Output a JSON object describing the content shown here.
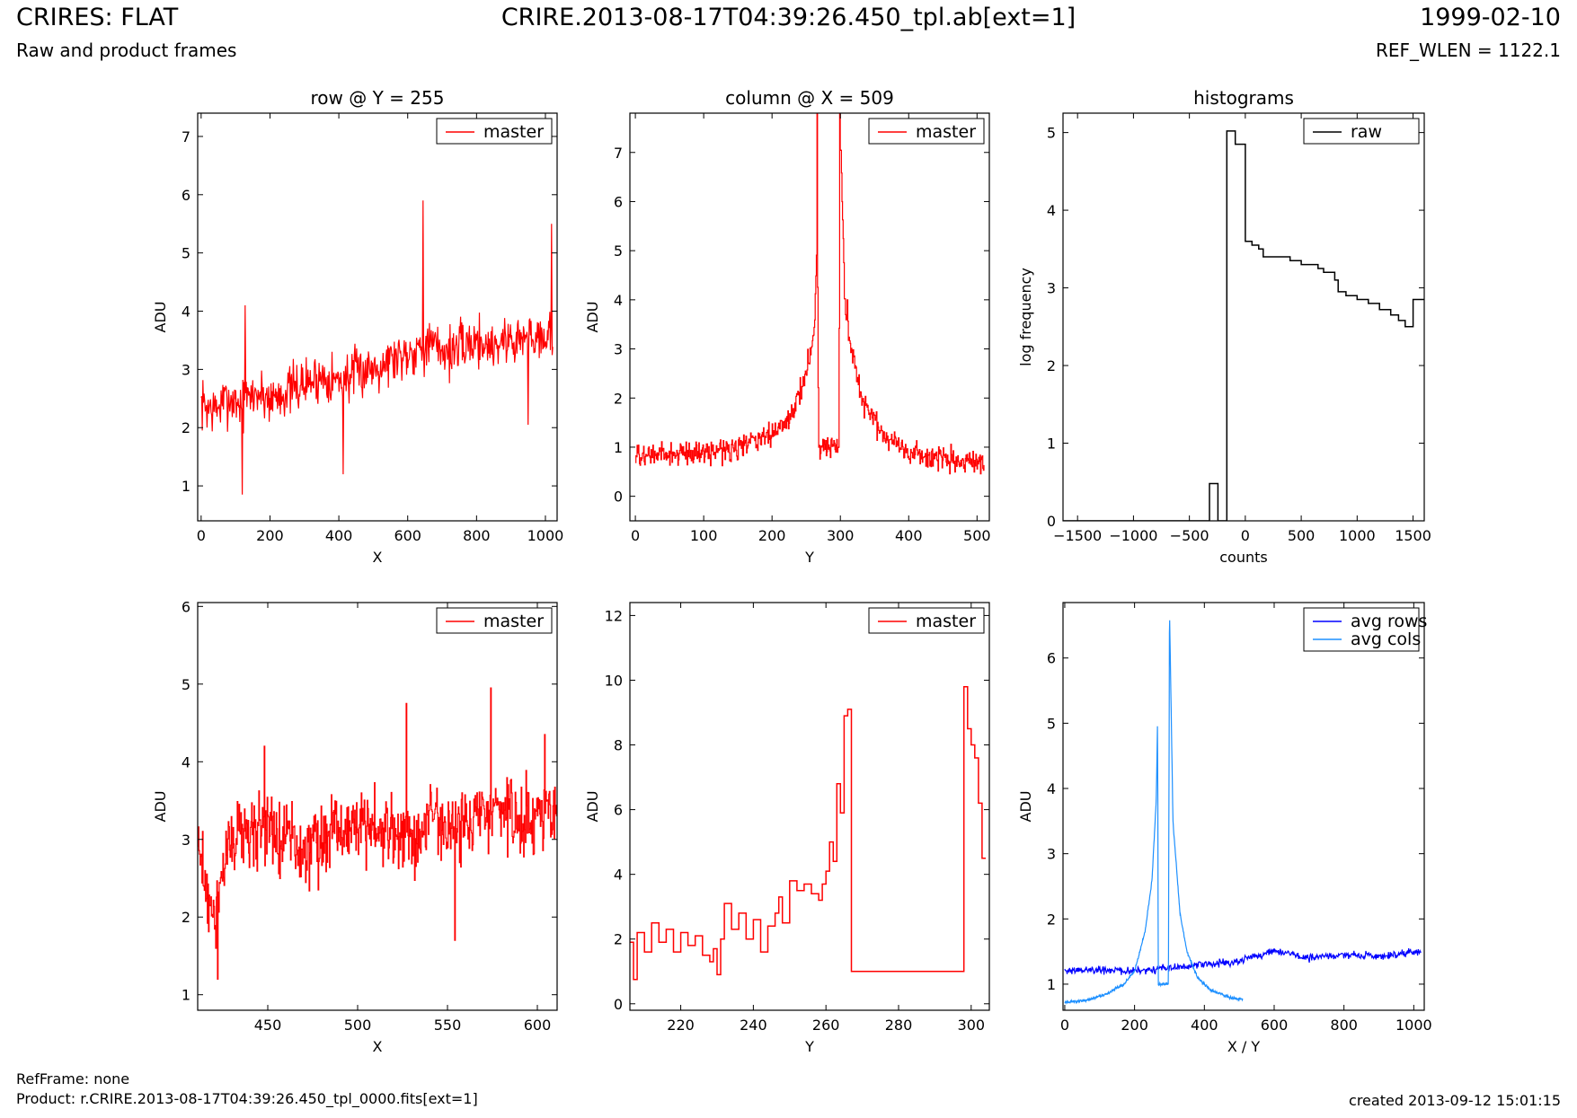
{
  "header": {
    "title": "CRIRES: FLAT",
    "subtitle": "Raw and product frames",
    "filename": "CRIRE.2013-08-17T04:39:26.450_tpl.ab[ext=1]",
    "date": "1999-02-10",
    "ref_wlen": "REF_WLEN = 1122.1"
  },
  "footer": {
    "refframe": "RefFrame: none",
    "product": "Product: r.CRIRE.2013-08-17T04:39:26.450_tpl_0000.fits[ext=1]",
    "created": "created 2013-09-12 15:01:15"
  },
  "colors": {
    "master": "#ff0000",
    "raw": "#000000",
    "avg_rows": "#0000ff",
    "avg_cols": "#1e90ff",
    "frame": "#000000"
  },
  "chart_data": [
    {
      "type": "line",
      "title": "row @ Y = 255",
      "xlabel": "X",
      "ylabel": "ADU",
      "xlim": [
        -10,
        1034
      ],
      "ylim": [
        0.4,
        7.4
      ],
      "xticks": [
        0,
        200,
        400,
        600,
        800,
        1000
      ],
      "yticks": [
        1,
        2,
        3,
        4,
        5,
        6,
        7
      ],
      "legend": "top-right",
      "series": [
        {
          "name": "master",
          "color": "#ff0000",
          "style": "line",
          "x": [
            0,
            40,
            80,
            120,
            160,
            200,
            240,
            280,
            320,
            360,
            400,
            440,
            480,
            520,
            560,
            600,
            640,
            680,
            720,
            760,
            800,
            840,
            880,
            920,
            960,
            1000,
            1023
          ],
          "y": [
            2.4,
            2.3,
            2.5,
            2.4,
            2.6,
            2.5,
            2.6,
            2.7,
            2.8,
            2.9,
            2.8,
            2.9,
            3.0,
            3.1,
            3.2,
            3.3,
            3.4,
            3.4,
            3.3,
            3.4,
            3.5,
            3.4,
            3.5,
            3.5,
            3.6,
            3.6,
            3.5
          ],
          "noise": 0.65,
          "spikes": [
            [
              120,
              0.85
            ],
            [
              128,
              4.1
            ],
            [
              412,
              1.2
            ],
            [
              645,
              5.9
            ],
            [
              950,
              2.05
            ],
            [
              1018,
              5.5
            ]
          ]
        }
      ]
    },
    {
      "type": "line",
      "title": "column @ X = 509",
      "xlabel": "Y",
      "ylabel": "ADU",
      "xlim": [
        -8,
        518
      ],
      "ylim": [
        -0.5,
        7.8
      ],
      "xticks": [
        0,
        100,
        200,
        300,
        400,
        500
      ],
      "yticks": [
        0,
        1,
        2,
        3,
        4,
        5,
        6,
        7
      ],
      "legend": "top-right",
      "series": [
        {
          "name": "master",
          "color": "#ff0000",
          "style": "step",
          "x": [
            0,
            50,
            100,
            150,
            200,
            230,
            250,
            262,
            266,
            268,
            297,
            300,
            306,
            312,
            330,
            360,
            400,
            450,
            511
          ],
          "y": [
            0.8,
            0.85,
            0.9,
            1.0,
            1.25,
            1.7,
            2.5,
            3.5,
            5.5,
            1.0,
            1.0,
            7.5,
            4.0,
            3.2,
            2.0,
            1.3,
            0.9,
            0.75,
            0.6
          ],
          "noise": 0.35,
          "spikes": [
            [
              266,
              8.0
            ],
            [
              268,
              1.0
            ],
            [
              297,
              1.0
            ],
            [
              299,
              8.0
            ],
            [
              302,
              6.0
            ],
            [
              310,
              4.0
            ]
          ]
        }
      ]
    },
    {
      "type": "line",
      "title": "histograms",
      "xlabel": "counts",
      "ylabel": "log frequency",
      "xlim": [
        -1630,
        1600
      ],
      "ylim": [
        0,
        5.25
      ],
      "xticks": [
        -1500,
        -1000,
        -500,
        0,
        500,
        1000,
        1500
      ],
      "yticks": [
        0,
        1,
        2,
        3,
        4,
        5
      ],
      "legend": "top-right",
      "series": [
        {
          "name": "raw",
          "color": "#000000",
          "style": "step",
          "x": [
            -1630,
            -320,
            -245,
            -165,
            -90,
            0,
            60,
            120,
            160,
            350,
            400,
            500,
            550,
            650,
            700,
            740,
            800,
            830,
            900,
            1000,
            1040,
            1100,
            1200,
            1300,
            1370,
            1430,
            1500,
            1600
          ],
          "y": [
            0,
            0.48,
            0,
            5.02,
            4.85,
            3.6,
            3.55,
            3.5,
            3.4,
            3.4,
            3.35,
            3.3,
            3.3,
            3.25,
            3.2,
            3.2,
            3.1,
            2.95,
            2.9,
            2.85,
            2.85,
            2.8,
            2.72,
            2.65,
            2.58,
            2.5,
            2.85,
            2.85
          ]
        }
      ]
    },
    {
      "type": "line",
      "title": "",
      "xlabel": "X",
      "ylabel": "ADU",
      "xlim": [
        411,
        611
      ],
      "ylim": [
        0.8,
        6.05
      ],
      "xticks": [
        450,
        500,
        550,
        600
      ],
      "yticks": [
        1,
        2,
        3,
        4,
        5,
        6
      ],
      "legend": "top-right",
      "series": [
        {
          "name": "master",
          "color": "#ff0000",
          "style": "step",
          "x": [
            411,
            420,
            430,
            440,
            450,
            460,
            470,
            480,
            490,
            500,
            510,
            520,
            530,
            540,
            550,
            560,
            570,
            580,
            590,
            600,
            611
          ],
          "y": [
            2.9,
            2.0,
            3.0,
            3.1,
            3.2,
            3.0,
            2.9,
            3.0,
            3.1,
            3.2,
            3.2,
            3.1,
            3.0,
            3.3,
            3.1,
            3.2,
            3.3,
            3.4,
            3.2,
            3.4,
            3.3
          ],
          "noise": 0.7,
          "spikes": [
            [
              422,
              1.2
            ],
            [
              448,
              4.2
            ],
            [
              478,
              2.35
            ],
            [
              527,
              4.75
            ],
            [
              554,
              1.7
            ],
            [
              574,
              4.95
            ],
            [
              604,
              4.35
            ]
          ]
        }
      ]
    },
    {
      "type": "line",
      "title": "",
      "xlabel": "Y",
      "ylabel": "ADU",
      "xlim": [
        206,
        305
      ],
      "ylim": [
        -0.2,
        12.4
      ],
      "xticks": [
        220,
        240,
        260,
        280,
        300
      ],
      "yticks": [
        0,
        2,
        4,
        6,
        8,
        10,
        12
      ],
      "legend": "top-right",
      "series": [
        {
          "name": "master",
          "color": "#ff0000",
          "style": "step",
          "x": [
            206,
            207,
            208,
            210,
            212,
            214,
            216,
            218,
            220,
            222,
            224,
            226,
            228,
            229,
            230,
            231,
            232,
            234,
            236,
            238,
            240,
            242,
            244,
            246,
            247,
            248,
            250,
            252,
            254,
            256,
            258,
            259,
            260,
            261,
            262,
            263,
            264,
            265,
            266,
            267,
            298,
            299,
            300,
            301,
            302,
            303,
            304
          ],
          "y": [
            1.9,
            0.75,
            2.2,
            1.6,
            2.5,
            1.9,
            2.3,
            1.6,
            2.2,
            1.8,
            2.1,
            1.5,
            1.3,
            1.7,
            0.9,
            2.0,
            3.1,
            2.3,
            2.8,
            2.0,
            2.6,
            1.6,
            2.4,
            2.8,
            3.3,
            2.5,
            3.8,
            3.5,
            3.7,
            3.4,
            3.2,
            3.7,
            4.1,
            5.0,
            4.4,
            6.8,
            5.9,
            8.9,
            9.1,
            1.0,
            9.8,
            8.5,
            8.0,
            7.6,
            6.2,
            4.5,
            4.5
          ]
        }
      ]
    },
    {
      "type": "line",
      "title": "",
      "xlabel": "X / Y",
      "ylabel": "ADU",
      "xlim": [
        -5,
        1030
      ],
      "ylim": [
        0.6,
        6.85
      ],
      "xticks": [
        0,
        200,
        400,
        600,
        800,
        1000
      ],
      "yticks": [
        1,
        2,
        3,
        4,
        5,
        6
      ],
      "legend": "top-right",
      "series": [
        {
          "name": "avg rows",
          "color": "#0000ff",
          "style": "line",
          "x": [
            0,
            100,
            200,
            300,
            400,
            500,
            600,
            700,
            800,
            900,
            1000,
            1023
          ],
          "y": [
            1.2,
            1.22,
            1.2,
            1.25,
            1.3,
            1.35,
            1.5,
            1.4,
            1.45,
            1.42,
            1.48,
            1.5
          ],
          "noise": 0.09
        },
        {
          "name": "avg cols",
          "color": "#1e90ff",
          "style": "line",
          "x": [
            0,
            60,
            120,
            170,
            200,
            230,
            250,
            262,
            266,
            268,
            297,
            300,
            310,
            330,
            350,
            380,
            420,
            470,
            511
          ],
          "y": [
            0.72,
            0.75,
            0.85,
            1.0,
            1.2,
            1.8,
            2.6,
            3.8,
            5.05,
            1.0,
            1.0,
            6.8,
            3.5,
            2.1,
            1.5,
            1.1,
            0.9,
            0.8,
            0.76
          ],
          "noise": 0.03
        }
      ]
    }
  ]
}
